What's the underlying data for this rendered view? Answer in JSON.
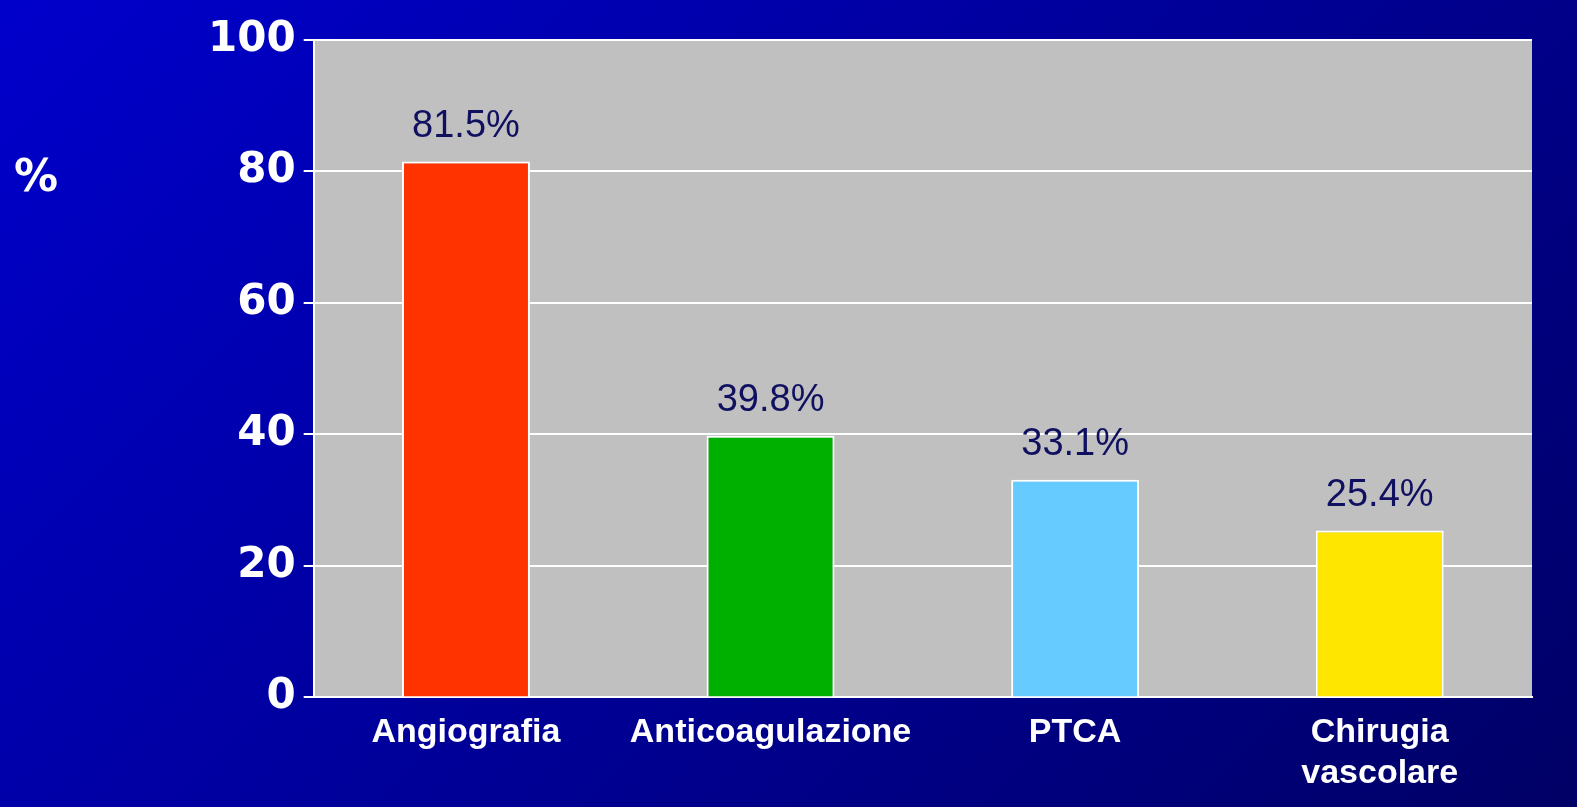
{
  "chart_data": {
    "type": "bar",
    "ylabel": "%",
    "categories": [
      "Angiografia",
      "Anticoagulazione",
      "PTCA",
      "Chirugia vascolare"
    ],
    "values": [
      81.5,
      39.8,
      33.1,
      25.4
    ],
    "colors": [
      "#ff3300",
      "#00b000",
      "#66ccff",
      "#ffe600"
    ],
    "value_labels": [
      "81.5%",
      "39.8%",
      "33.1%",
      "25.4%"
    ],
    "ylim": [
      0,
      100
    ],
    "yticks": [
      0,
      20,
      40,
      60,
      80,
      100
    ],
    "grid": "y",
    "legend": false
  }
}
